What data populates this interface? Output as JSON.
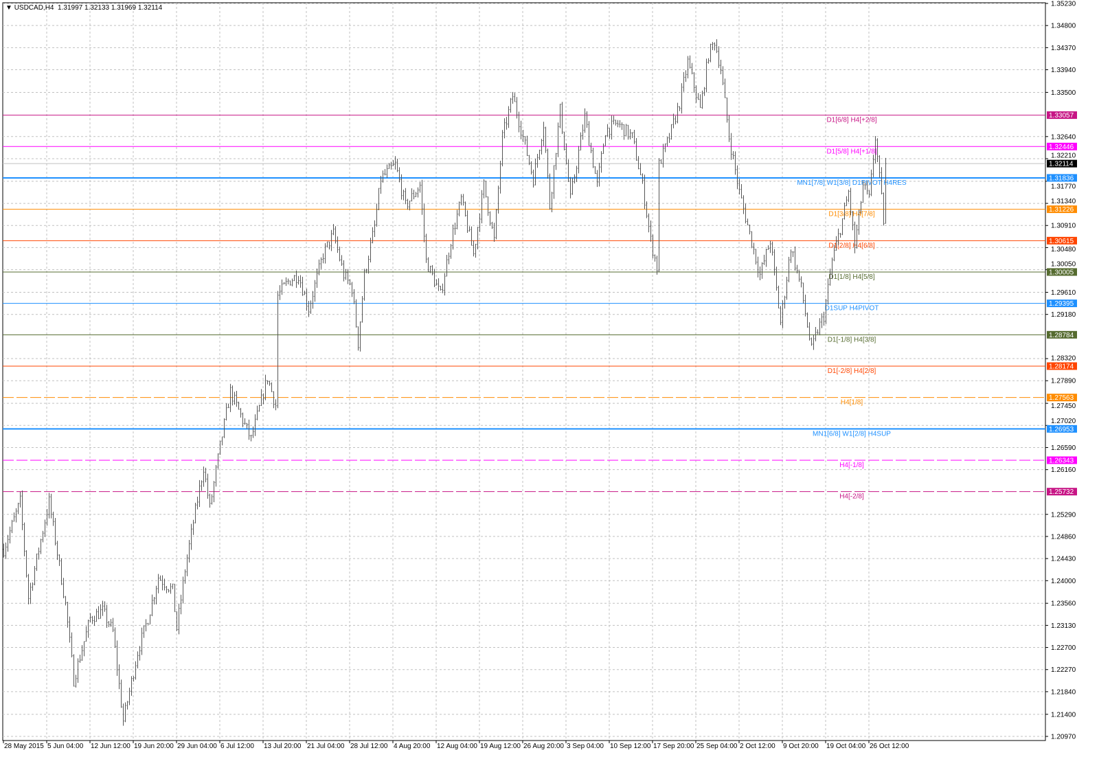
{
  "header": {
    "arrow": "▼",
    "symbol": "USDCAD,H4",
    "ohlc": "1.31997 1.32133 1.31969 1.32114"
  },
  "chart_data": {
    "type": "bar",
    "title": "USDCAD,H4",
    "ylim": [
      1.2097,
      1.3523
    ],
    "grid": true,
    "bar_color": "#555555",
    "y_ticks": [
      "1.35230",
      "1.34800",
      "1.34370",
      "1.33940",
      "1.33500",
      "1.32640",
      "1.32210",
      "1.31770",
      "1.31340",
      "1.30910",
      "1.30480",
      "1.30050",
      "1.29610",
      "1.29180",
      "1.28320",
      "1.27890",
      "1.27450",
      "1.27020",
      "1.26590",
      "1.26160",
      "1.25290",
      "1.24860",
      "1.24430",
      "1.24000",
      "1.23560",
      "1.23130",
      "1.22700",
      "1.22270",
      "1.21840",
      "1.21400",
      "1.20970"
    ],
    "x_ticks": [
      "28 May 2015",
      "5 Jun 04:00",
      "12 Jun 12:00",
      "19 Jun 20:00",
      "29 Jun 04:00",
      "6 Jul 12:00",
      "13 Jul 20:00",
      "21 Jul 04:00",
      "28 Jul 12:00",
      "4 Aug 20:00",
      "12 Aug 04:00",
      "19 Aug 12:00",
      "26 Aug 20:00",
      "3 Sep 04:00",
      "10 Sep 12:00",
      "17 Sep 20:00",
      "25 Sep 04:00",
      "2 Oct 12:00",
      "9 Oct 20:00",
      "19 Oct 04:00",
      "26 Oct 12:00"
    ],
    "bars_per_x_tick": 21,
    "price_path": [
      [
        0,
        1.2461
      ],
      [
        8,
        1.2554
      ],
      [
        12,
        1.2367
      ],
      [
        22,
        1.2554
      ],
      [
        30,
        1.2354
      ],
      [
        34,
        1.2207
      ],
      [
        42,
        1.2327
      ],
      [
        48,
        1.2341
      ],
      [
        53,
        1.2301
      ],
      [
        58,
        1.2127
      ],
      [
        65,
        1.2261
      ],
      [
        70,
        1.2327
      ],
      [
        75,
        1.2407
      ],
      [
        82,
        1.2381
      ],
      [
        84,
        1.2307
      ],
      [
        88,
        1.2421
      ],
      [
        92,
        1.2514
      ],
      [
        97,
        1.2621
      ],
      [
        100,
        1.2541
      ],
      [
        105,
        1.2661
      ],
      [
        110,
        1.2768
      ],
      [
        120,
        1.2675
      ],
      [
        128,
        1.2795
      ],
      [
        132,
        1.2741
      ],
      [
        133,
        1.2955
      ],
      [
        138,
        1.2982
      ],
      [
        143,
        1.2995
      ],
      [
        148,
        1.2929
      ],
      [
        155,
        1.3035
      ],
      [
        160,
        1.3075
      ],
      [
        165,
        1.2995
      ],
      [
        169,
        1.2969
      ],
      [
        172,
        1.2862
      ],
      [
        175,
        1.2995
      ],
      [
        180,
        1.3089
      ],
      [
        183,
        1.3182
      ],
      [
        190,
        1.3209
      ],
      [
        195,
        1.3129
      ],
      [
        202,
        1.3169
      ],
      [
        205,
        1.3022
      ],
      [
        212,
        1.2955
      ],
      [
        217,
        1.3062
      ],
      [
        222,
        1.3142
      ],
      [
        228,
        1.3035
      ],
      [
        233,
        1.3169
      ],
      [
        238,
        1.3062
      ],
      [
        242,
        1.3263
      ],
      [
        247,
        1.3343
      ],
      [
        252,
        1.3263
      ],
      [
        257,
        1.3182
      ],
      [
        262,
        1.3289
      ],
      [
        265,
        1.3129
      ],
      [
        270,
        1.3316
      ],
      [
        275,
        1.3142
      ],
      [
        282,
        1.3303
      ],
      [
        288,
        1.3169
      ],
      [
        292,
        1.3276
      ],
      [
        298,
        1.3289
      ],
      [
        305,
        1.3263
      ],
      [
        310,
        1.3169
      ],
      [
        314,
        1.3062
      ],
      [
        317,
        1.3009
      ],
      [
        318,
        1.3209
      ],
      [
        323,
        1.3263
      ],
      [
        328,
        1.3329
      ],
      [
        332,
        1.3409
      ],
      [
        338,
        1.3316
      ],
      [
        342,
        1.3423
      ],
      [
        345,
        1.345
      ],
      [
        348,
        1.3396
      ],
      [
        352,
        1.3263
      ],
      [
        357,
        1.3156
      ],
      [
        362,
        1.3075
      ],
      [
        367,
        1.2995
      ],
      [
        372,
        1.3062
      ],
      [
        377,
        1.2902
      ],
      [
        382,
        1.3049
      ],
      [
        387,
        1.2969
      ],
      [
        392,
        1.2848
      ],
      [
        395,
        1.2888
      ],
      [
        398,
        1.2915
      ],
      [
        402,
        1.3022
      ],
      [
        407,
        1.3102
      ],
      [
        410,
        1.3156
      ],
      [
        413,
        1.3049
      ],
      [
        417,
        1.3169
      ],
      [
        420,
        1.3142
      ],
      [
        423,
        1.3263
      ],
      [
        427,
        1.3102
      ],
      [
        428,
        1.32114
      ]
    ],
    "current_price": {
      "value": 1.32114,
      "label": "1.32114",
      "color": "#000000",
      "line_color": "#c0c0c0"
    },
    "levels": [
      {
        "value": 1.33057,
        "price_label": "1.33057",
        "text": "D1[6/8] H4[+2/8]",
        "color": "#c71585",
        "style": "solid",
        "width": 1
      },
      {
        "value": 1.32446,
        "price_label": "1.32446",
        "text": "D1[5/8] H4[+1/8]",
        "color": "#ff00ff",
        "style": "solid",
        "width": 1
      },
      {
        "value": 1.31836,
        "price_label": "1.31836",
        "text": "MN1[7/8] W1[3/8] D1PIVOT H4RES",
        "color": "#1e90ff",
        "style": "solid",
        "width": 2
      },
      {
        "value": 1.31226,
        "price_label": "1.31226",
        "text": "D1[3/8] H4[7/8]",
        "color": "#ff8c00",
        "style": "solid",
        "width": 1
      },
      {
        "value": 1.30615,
        "price_label": "1.30615",
        "text": "D1[2/8] H4[6/8]",
        "color": "#ff4500",
        "style": "solid",
        "width": 1
      },
      {
        "value": 1.30005,
        "price_label": "1.30005",
        "text": "D1[1/8] H4[5/8]",
        "color": "#556b2f",
        "style": "solid",
        "width": 1
      },
      {
        "value": 1.29395,
        "price_label": "1.29395",
        "text": "D1SUP H4PIVOT",
        "color": "#1e90ff",
        "style": "solid",
        "width": 1
      },
      {
        "value": 1.28784,
        "price_label": "1.28784",
        "text": "D1[-1/8] H4[3/8]",
        "color": "#556b2f",
        "style": "solid",
        "width": 1
      },
      {
        "value": 1.28174,
        "price_label": "1.28174",
        "text": "D1[-2/8] H4[2/8]",
        "color": "#ff4500",
        "style": "solid",
        "width": 1
      },
      {
        "value": 1.27563,
        "price_label": "1.27563",
        "text": "H4[1/8]",
        "color": "#ff8c00",
        "style": "dashed",
        "width": 1
      },
      {
        "value": 1.26953,
        "price_label": "1.26953",
        "text": "MN1[6/8] W1[2/8] H4SUP",
        "color": "#1e90ff",
        "style": "solid",
        "width": 2
      },
      {
        "value": 1.26343,
        "price_label": "1.26343",
        "text": "H4[-1/8]",
        "color": "#ff00ff",
        "style": "dashed",
        "width": 1
      },
      {
        "value": 1.25732,
        "price_label": "1.25732",
        "text": "H4[-2/8]",
        "color": "#c71585",
        "style": "dashed",
        "width": 1
      }
    ]
  }
}
